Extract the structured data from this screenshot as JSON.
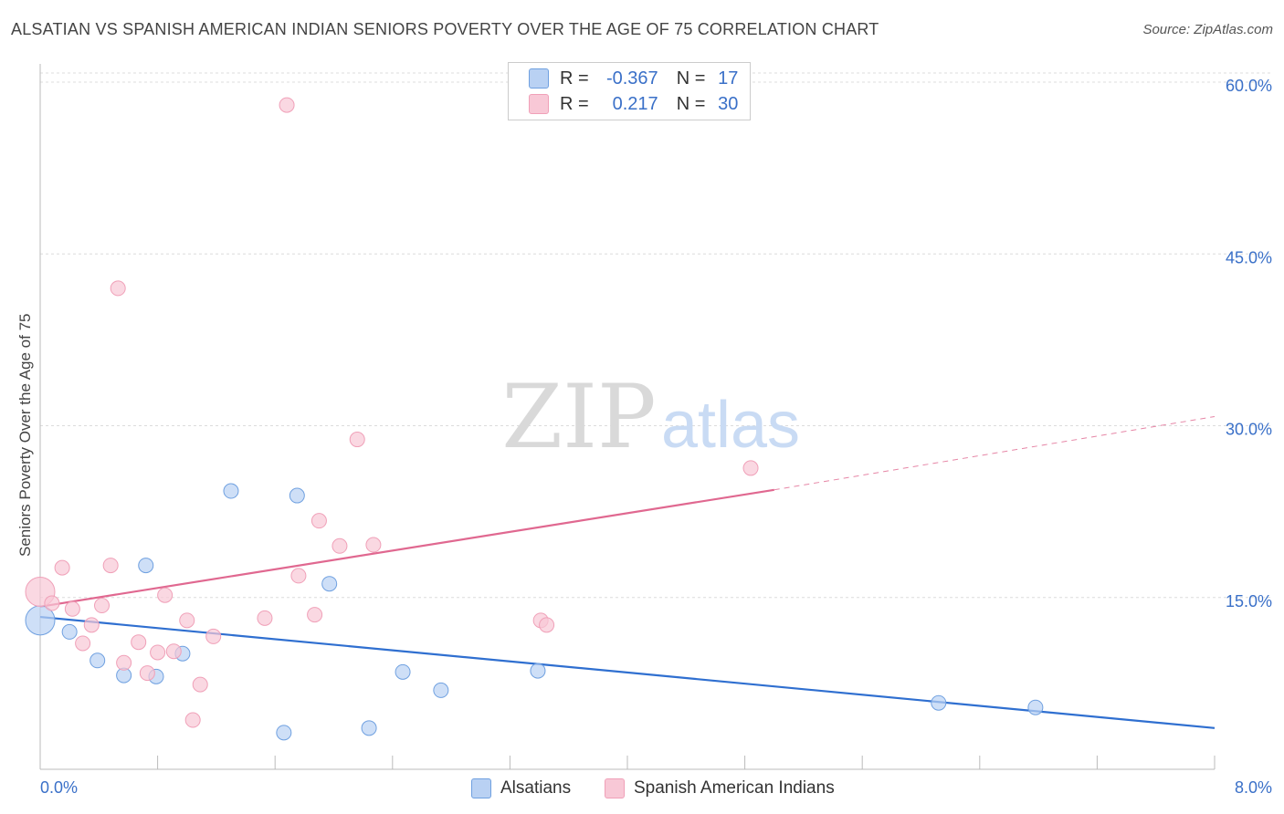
{
  "title": "ALSATIAN VS SPANISH AMERICAN INDIAN SENIORS POVERTY OVER THE AGE OF 75 CORRELATION CHART",
  "source": "Source: ZipAtlas.com",
  "watermark": {
    "zip": "ZIP",
    "atlas": "atlas"
  },
  "legend": {
    "r_label": "R =",
    "n_label": "N =",
    "rows": [
      {
        "r": "-0.367",
        "n": "17",
        "color": "#b9d1f3"
      },
      {
        "r": "0.217",
        "n": "30",
        "color": "#f8c8d6"
      }
    ]
  },
  "bottom_legend": [
    "Alsatians",
    "Spanish American Indians"
  ],
  "chart_data": {
    "type": "scatter",
    "title": "ALSATIAN VS SPANISH AMERICAN INDIAN SENIORS POVERTY OVER THE AGE OF 75 CORRELATION CHART",
    "xlabel": "",
    "ylabel": "Seniors Poverty Over the Age of 75",
    "xlim": [
      0,
      8
    ],
    "ylim": [
      0,
      60
    ],
    "x_tick_labels": [
      "0.0%",
      "8.0%"
    ],
    "y_tick_labels": [
      "15.0%",
      "30.0%",
      "45.0%",
      "60.0%"
    ],
    "y_ticks": [
      15,
      30,
      45,
      60
    ],
    "series": [
      {
        "name": "Alsatians",
        "color": "#6fa0e0",
        "fill": "#b9d1f3",
        "line_color": "#2f6fd0",
        "r": -0.367,
        "n": 17,
        "points": [
          [
            0.0,
            13.0
          ],
          [
            0.2,
            12.0
          ],
          [
            0.39,
            9.5
          ],
          [
            0.57,
            8.2
          ],
          [
            0.72,
            17.8
          ],
          [
            0.79,
            8.1
          ],
          [
            0.97,
            10.1
          ],
          [
            1.3,
            24.3
          ],
          [
            1.66,
            3.2
          ],
          [
            1.75,
            23.9
          ],
          [
            1.97,
            16.2
          ],
          [
            2.24,
            3.6
          ],
          [
            2.47,
            8.5
          ],
          [
            2.73,
            6.9
          ],
          [
            3.39,
            8.6
          ],
          [
            6.12,
            5.8
          ],
          [
            6.78,
            5.4
          ]
        ],
        "trend": {
          "x0": 0.0,
          "y0": 13.3,
          "x1": 8.0,
          "y1": 3.6
        }
      },
      {
        "name": "Spanish American Indians",
        "color": "#f0a0b8",
        "fill": "#f8c8d6",
        "line_color": "#e06890",
        "r": 0.217,
        "n": 30,
        "points": [
          [
            0.0,
            15.5
          ],
          [
            0.08,
            14.5
          ],
          [
            0.15,
            17.6
          ],
          [
            0.22,
            14.0
          ],
          [
            0.29,
            11.0
          ],
          [
            0.35,
            12.6
          ],
          [
            0.42,
            14.3
          ],
          [
            0.48,
            17.8
          ],
          [
            0.53,
            42.0
          ],
          [
            0.57,
            9.3
          ],
          [
            0.67,
            11.1
          ],
          [
            0.73,
            8.4
          ],
          [
            0.8,
            10.2
          ],
          [
            0.85,
            15.2
          ],
          [
            0.91,
            10.3
          ],
          [
            1.0,
            13.0
          ],
          [
            1.04,
            4.3
          ],
          [
            1.09,
            7.4
          ],
          [
            1.18,
            11.6
          ],
          [
            1.53,
            13.2
          ],
          [
            1.68,
            58.0
          ],
          [
            1.76,
            16.9
          ],
          [
            1.87,
            13.5
          ],
          [
            1.9,
            21.7
          ],
          [
            2.04,
            19.5
          ],
          [
            2.16,
            28.8
          ],
          [
            2.27,
            19.6
          ],
          [
            3.41,
            13.0
          ],
          [
            3.45,
            12.6
          ],
          [
            4.84,
            26.3
          ]
        ],
        "trend": {
          "x0": 0.0,
          "y0": 14.2,
          "x1": 5.0,
          "y1": 24.4
        },
        "trend_dashed": {
          "x0": 5.0,
          "y0": 24.4,
          "x1": 8.0,
          "y1": 30.8
        }
      }
    ]
  }
}
